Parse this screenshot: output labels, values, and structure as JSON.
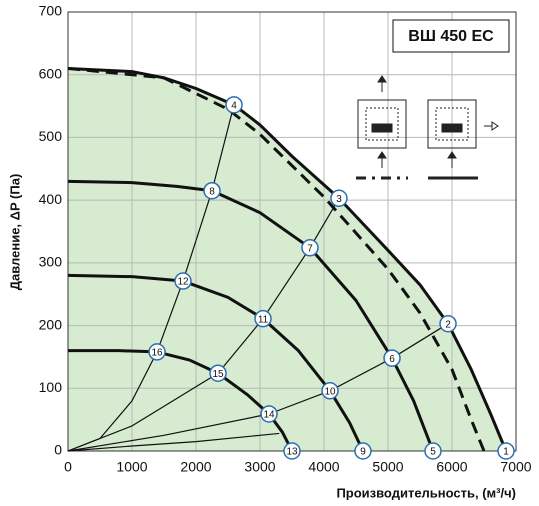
{
  "chart_data": {
    "type": "line",
    "title": "ВШ 450 EC",
    "x_label": "Производительность, (м³/ч)",
    "y_label": "Давление, ΔP (Па)",
    "xlim": [
      0,
      7000
    ],
    "xticks": [
      0,
      1000,
      2000,
      3000,
      4000,
      5000,
      6000,
      7000
    ],
    "ylim": [
      0,
      700
    ],
    "yticks": [
      0,
      100,
      200,
      300,
      400,
      500,
      600,
      700
    ],
    "grid": true,
    "series": [
      {
        "color": "#111111",
        "fill": "#d6ebd0",
        "style": "solid",
        "weight": "thick",
        "x": [
          0,
          1000,
          1500,
          2000,
          2594,
          3000,
          3500,
          4234,
          5000,
          5500,
          5938,
          6300,
          6600,
          6844
        ],
        "values": [
          610,
          605,
          595,
          578,
          552,
          520,
          470,
          403,
          320,
          265,
          203,
          130,
          60,
          0
        ]
      },
      {
        "color": "#111111",
        "style": "dashed",
        "weight": "thick",
        "x": [
          0,
          1500,
          2500,
          3000,
          4000,
          5000,
          5500,
          6000,
          6300,
          6500
        ],
        "values": [
          610,
          595,
          545,
          505,
          405,
          290,
          220,
          130,
          50,
          0
        ]
      },
      {
        "color": "#111111",
        "style": "solid",
        "weight": "thick",
        "x": [
          0,
          1000,
          1700,
          2250,
          3000,
          3781,
          4500,
          5063,
          5400,
          5703
        ],
        "values": [
          430,
          428,
          422,
          415,
          380,
          324,
          240,
          148,
          80,
          0
        ]
      },
      {
        "color": "#111111",
        "style": "solid",
        "weight": "thick",
        "x": [
          0,
          1000,
          1797,
          2500,
          3047,
          3600,
          4094,
          4400,
          4609
        ],
        "values": [
          280,
          278,
          271,
          245,
          211,
          160,
          96,
          45,
          0
        ]
      },
      {
        "color": "#111111",
        "style": "solid",
        "weight": "thick",
        "x": [
          0,
          800,
          1391,
          1900,
          2344,
          2800,
          3141,
          3350,
          3500
        ],
        "values": [
          160,
          160,
          158,
          145,
          124,
          90,
          59,
          30,
          0
        ]
      },
      {
        "color": "#111111",
        "style": "solid",
        "weight": "thin",
        "x": [
          0,
          500,
          1000,
          1391,
          1797,
          2250,
          2594
        ],
        "values": [
          0,
          20,
          80,
          158,
          271,
          415,
          552
        ]
      },
      {
        "color": "#111111",
        "style": "solid",
        "weight": "thin",
        "x": [
          0,
          1000,
          2344,
          3047,
          3781,
          4234
        ],
        "values": [
          0,
          40,
          124,
          211,
          324,
          403
        ]
      },
      {
        "color": "#111111",
        "style": "solid",
        "weight": "thin",
        "x": [
          0,
          1500,
          3141,
          4094,
          5063,
          5938
        ],
        "values": [
          0,
          25,
          59,
          96,
          148,
          203
        ]
      },
      {
        "color": "#111111",
        "style": "solid",
        "weight": "thin",
        "x": [
          0,
          1000,
          2000,
          3000,
          3300
        ],
        "values": [
          0,
          8,
          15,
          25,
          28
        ]
      }
    ],
    "markers": [
      {
        "label": "1",
        "x": 6844,
        "y": 0
      },
      {
        "label": "2",
        "x": 5938,
        "y": 203
      },
      {
        "label": "3",
        "x": 4234,
        "y": 403
      },
      {
        "label": "4",
        "x": 2594,
        "y": 552
      },
      {
        "label": "5",
        "x": 5703,
        "y": 0
      },
      {
        "label": "6",
        "x": 5063,
        "y": 148
      },
      {
        "label": "7",
        "x": 3781,
        "y": 324
      },
      {
        "label": "8",
        "x": 2250,
        "y": 415
      },
      {
        "label": "9",
        "x": 4609,
        "y": 0
      },
      {
        "label": "10",
        "x": 4094,
        "y": 96
      },
      {
        "label": "11",
        "x": 3047,
        "y": 211
      },
      {
        "label": "12",
        "x": 1797,
        "y": 271
      },
      {
        "label": "13",
        "x": 3500,
        "y": 0
      },
      {
        "label": "14",
        "x": 3141,
        "y": 59
      },
      {
        "label": "15",
        "x": 2344,
        "y": 124
      },
      {
        "label": "16",
        "x": 1391,
        "y": 158
      }
    ]
  }
}
